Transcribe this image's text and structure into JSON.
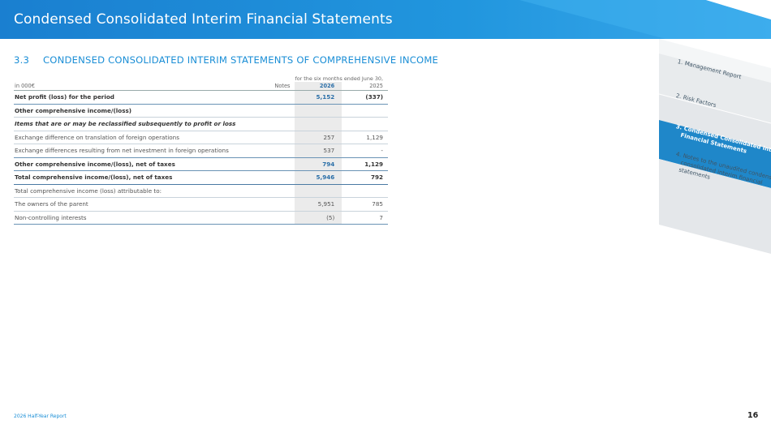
{
  "header": {
    "title": "Condensed Consolidated Interim Financial Statements"
  },
  "section": {
    "number": "3.3",
    "title": "CONDENSED CONSOLIDATED INTERIM STATEMENTS OF COMPREHENSIVE INCOME"
  },
  "table": {
    "period_header": "for the six months ended June 30,",
    "unit_label": "in 000€",
    "notes_label": "Notes",
    "col_2026": "2026",
    "col_2025": "2025",
    "rows": [
      {
        "label": "Net profit (loss) for the period",
        "v2026": "5,152",
        "v2025": "(337)"
      },
      {
        "label": "Other comprehensive income/(loss)",
        "v2026": "",
        "v2025": ""
      },
      {
        "label": "Items that are or may be reclassified subsequently to profit or loss",
        "v2026": "",
        "v2025": ""
      },
      {
        "label": "Exchange difference on translation of foreign operations",
        "v2026": "257",
        "v2025": "1,129"
      },
      {
        "label": "Exchange differences resulting from net investment in foreign operations",
        "v2026": "537",
        "v2025": "-"
      },
      {
        "label": "Other comprehensive income/(loss), net of taxes",
        "v2026": "794",
        "v2025": "1,129"
      },
      {
        "label": "Total comprehensive income/(loss), net of taxes",
        "v2026": "5,946",
        "v2025": "792"
      },
      {
        "label": "Total comprehensive income (loss) attributable to:",
        "v2026": "",
        "v2025": ""
      },
      {
        "label": "The owners of the parent",
        "v2026": "5,951",
        "v2025": "785"
      },
      {
        "label": "Non-controlling interests",
        "v2026": "(5)",
        "v2025": "7"
      }
    ]
  },
  "nav": {
    "items": [
      {
        "label": "1. Management Report"
      },
      {
        "label": "2. Risk Factors"
      },
      {
        "line1": "3. Condensed Consolidated Interim",
        "line2": "Financial Statements"
      },
      {
        "line1": "4. Notes to the unaudited condensed",
        "line2": "consolidated interim financial",
        "line3": "statements"
      }
    ]
  },
  "footer": {
    "report": "2026 Half-Year Report",
    "page": "16"
  },
  "colors": {
    "brand_blue": "#1a8ed6",
    "active_tab": "#1f87c9",
    "tab_grey": "#e4e7ea"
  }
}
